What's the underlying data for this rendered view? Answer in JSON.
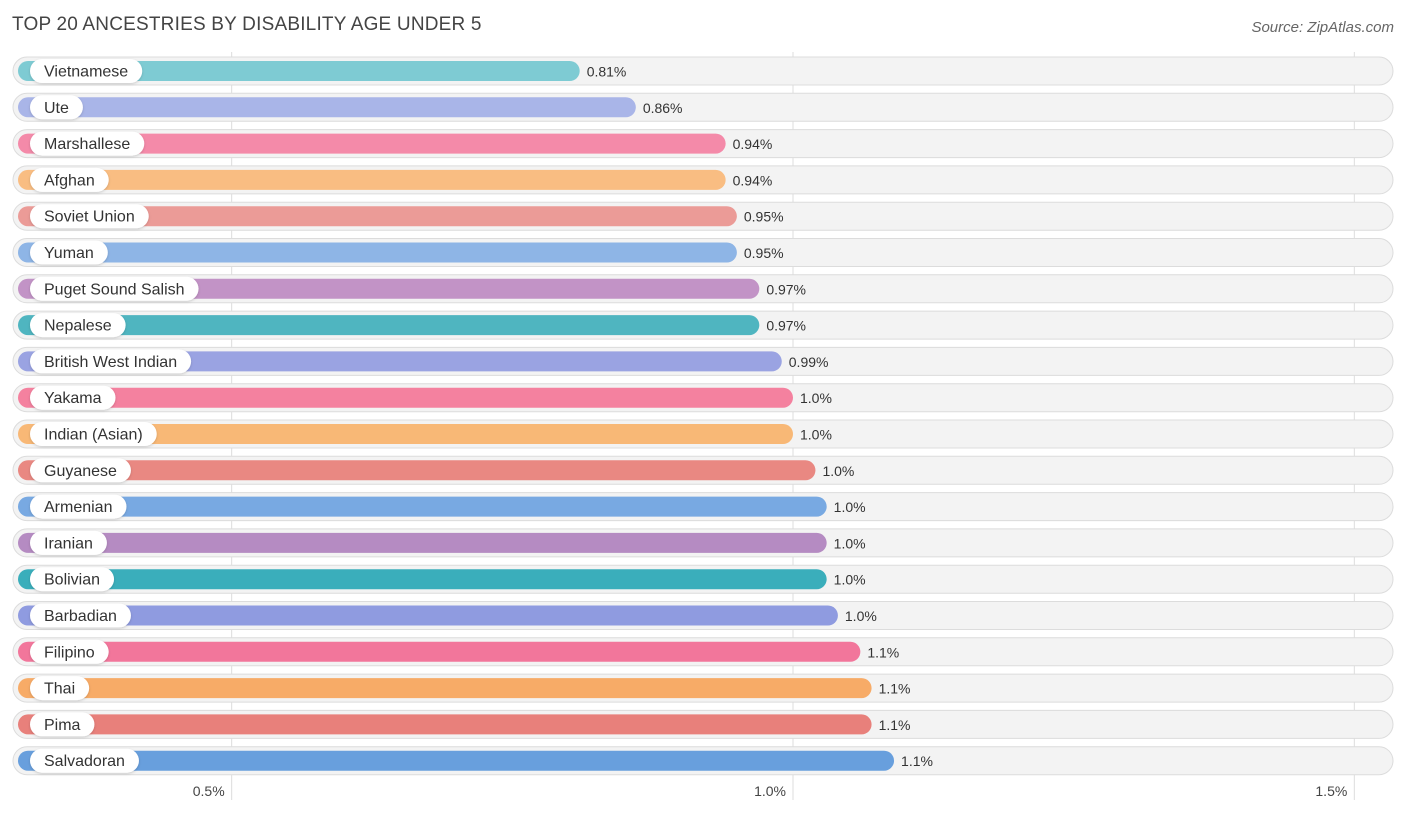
{
  "header": {
    "title": "TOP 20 ANCESTRIES BY DISABILITY AGE UNDER 5",
    "source": "Source: ZipAtlas.com"
  },
  "chart_data": {
    "type": "bar",
    "orientation": "horizontal",
    "title": "TOP 20 ANCESTRIES BY DISABILITY AGE UNDER 5",
    "xlabel": "",
    "ylabel": "",
    "xlim": [
      0.307,
      1.53
    ],
    "grid": true,
    "categories": [
      "Vietnamese",
      "Ute",
      "Marshallese",
      "Afghan",
      "Soviet Union",
      "Yuman",
      "Puget Sound Salish",
      "Nepalese",
      "British West Indian",
      "Yakama",
      "Indian (Asian)",
      "Guyanese",
      "Armenian",
      "Iranian",
      "Bolivian",
      "Barbadian",
      "Filipino",
      "Thai",
      "Pima",
      "Salvadoran"
    ],
    "values": [
      0.81,
      0.86,
      0.94,
      0.94,
      0.95,
      0.95,
      0.97,
      0.97,
      0.99,
      1.0,
      1.0,
      1.02,
      1.03,
      1.03,
      1.03,
      1.04,
      1.06,
      1.07,
      1.07,
      1.09
    ],
    "value_labels": [
      "0.81%",
      "0.86%",
      "0.94%",
      "0.94%",
      "0.95%",
      "0.95%",
      "0.97%",
      "0.97%",
      "0.99%",
      "1.0%",
      "1.0%",
      "1.0%",
      "1.0%",
      "1.0%",
      "1.0%",
      "1.0%",
      "1.1%",
      "1.1%",
      "1.1%",
      "1.1%"
    ],
    "ticks": [
      0.5,
      1.0,
      1.5
    ],
    "tick_labels": [
      "0.5%",
      "1.0%",
      "1.5%"
    ],
    "colors": [
      "#7ecbd3",
      "#a9b5e8",
      "#f48aa9",
      "#f9bd82",
      "#eb9b97",
      "#8eb5e6",
      "#c293c6",
      "#4fb5c0",
      "#9aa3e2",
      "#f4819f",
      "#f8b876",
      "#e98882",
      "#78a9e2",
      "#b58bc2",
      "#3aaebb",
      "#8f9be0",
      "#f2769b",
      "#f7ab67",
      "#e8807b",
      "#689fdd"
    ]
  }
}
